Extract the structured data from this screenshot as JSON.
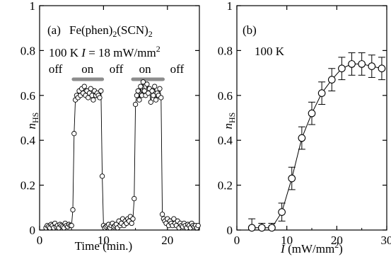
{
  "chart_data": [
    {
      "type": "scatter",
      "panel_label": "(a)",
      "xlabel": "Time (min.)",
      "ylabel": {
        "base": "n",
        "sub": "HS"
      },
      "xlim": [
        0,
        25
      ],
      "ylim": [
        0,
        1
      ],
      "xticks": [
        0,
        10,
        20
      ],
      "yticks": [
        0,
        0.2,
        0.4,
        0.6,
        0.8,
        1
      ],
      "ytick_labels": [
        "0",
        "0.2",
        "0.4",
        "0.6",
        "0.8",
        "1"
      ],
      "annotations": {
        "compound": {
          "pre": "Fe(phen)",
          "sub1": "2",
          "mid": "(SCN)",
          "sub2": "2"
        },
        "conditions": {
          "temp": "100 K",
          "ivar": "I",
          "ival": " = 18 mW/mm",
          "sup": "2"
        },
        "states": [
          {
            "label": "off",
            "x": 2.5
          },
          {
            "label": "on",
            "x": 7.5
          },
          {
            "label": "off",
            "x": 12.0
          },
          {
            "label": "on",
            "x": 16.5
          },
          {
            "label": "off",
            "x": 21.5
          }
        ],
        "light_bars": [
          {
            "x0": 5.3,
            "x1": 9.8
          },
          {
            "x0": 14.6,
            "x1": 19.3
          }
        ]
      },
      "series": [
        {
          "connect": true,
          "x": [
            1.0,
            1.2,
            1.4,
            1.6,
            1.8,
            2.0,
            2.2,
            2.4,
            2.6,
            2.8,
            3.0,
            3.2,
            3.4,
            3.6,
            3.8,
            4.0,
            4.2,
            4.4,
            4.6,
            4.8,
            5.0,
            5.2,
            5.4,
            5.6,
            5.8,
            6.0,
            6.2,
            6.4,
            6.6,
            6.8,
            7.0,
            7.2,
            7.4,
            7.6,
            7.8,
            8.0,
            8.2,
            8.4,
            8.6,
            8.8,
            9.0,
            9.2,
            9.4,
            9.6,
            9.8,
            10.0,
            10.2,
            10.4,
            10.6,
            10.8,
            11.0,
            11.2,
            11.4,
            11.6,
            11.8,
            12.0,
            12.2,
            12.4,
            12.6,
            12.8,
            13.0,
            13.2,
            13.4,
            13.6,
            13.8,
            14.0,
            14.2,
            14.4,
            14.6,
            14.8,
            15.0,
            15.2,
            15.4,
            15.6,
            15.8,
            16.0,
            16.2,
            16.4,
            16.6,
            16.8,
            17.0,
            17.2,
            17.4,
            17.6,
            17.8,
            18.0,
            18.2,
            18.4,
            18.6,
            18.8,
            19.0,
            19.2,
            19.4,
            19.6,
            19.8,
            20.0,
            20.2,
            20.4,
            20.6,
            20.8,
            21.0,
            21.2,
            21.4,
            21.6,
            21.8,
            22.0,
            22.2,
            22.4,
            22.6,
            22.8,
            23.0,
            23.2,
            23.4,
            23.6,
            23.8,
            24.0,
            24.2,
            24.4,
            24.6,
            24.8
          ],
          "y": [
            0.01,
            0.02,
            0.015,
            0.01,
            0.025,
            0.02,
            0.01,
            0.03,
            0.015,
            0.02,
            0.01,
            0.025,
            0.02,
            0.015,
            0.01,
            0.03,
            0.02,
            0.015,
            0.025,
            0.02,
            0.02,
            0.09,
            0.43,
            0.58,
            0.6,
            0.59,
            0.62,
            0.6,
            0.63,
            0.61,
            0.64,
            0.6,
            0.62,
            0.59,
            0.61,
            0.63,
            0.6,
            0.58,
            0.62,
            0.6,
            0.61,
            0.6,
            0.59,
            0.62,
            0.24,
            0.02,
            0.01,
            0.015,
            0.02,
            0.025,
            0.01,
            0.02,
            0.03,
            0.015,
            0.02,
            0.025,
            0.01,
            0.04,
            0.02,
            0.03,
            0.05,
            0.02,
            0.04,
            0.03,
            0.05,
            0.04,
            0.06,
            0.03,
            0.05,
            0.14,
            0.56,
            0.6,
            0.62,
            0.58,
            0.64,
            0.6,
            0.66,
            0.62,
            0.6,
            0.65,
            0.61,
            0.63,
            0.57,
            0.62,
            0.6,
            0.64,
            0.58,
            0.61,
            0.6,
            0.63,
            0.59,
            0.07,
            0.05,
            0.04,
            0.03,
            0.05,
            0.02,
            0.04,
            0.03,
            0.02,
            0.05,
            0.03,
            0.02,
            0.04,
            0.01,
            0.03,
            0.02,
            0.015,
            0.03,
            0.02,
            0.01,
            0.025,
            0.02,
            0.01,
            0.03,
            0.02,
            0.015,
            0.02,
            0.01,
            0.02
          ]
        }
      ]
    },
    {
      "type": "line",
      "panel_label": "(b)",
      "xlabel": {
        "var": "I",
        "unit": " (mW/mm",
        "sup": "2",
        "close": ")"
      },
      "ylabel": {
        "base": "n",
        "sub": "HS"
      },
      "xlim": [
        0,
        30
      ],
      "ylim": [
        0,
        1
      ],
      "xticks": [
        0,
        10,
        20,
        30
      ],
      "yticks": [
        0,
        0.2,
        0.4,
        0.6,
        0.8,
        1
      ],
      "ytick_labels": [
        "0",
        "0.2",
        "0.4",
        "0.6",
        "0.8",
        "1"
      ],
      "annotations": {
        "temp": "100 K"
      },
      "series": [
        {
          "x": [
            3,
            5,
            7,
            9,
            11,
            13,
            15,
            17,
            19,
            21,
            23,
            25,
            27,
            29
          ],
          "y": [
            0.01,
            0.01,
            0.01,
            0.08,
            0.23,
            0.41,
            0.52,
            0.61,
            0.67,
            0.72,
            0.74,
            0.74,
            0.73,
            0.72
          ],
          "err": [
            0.04,
            0.02,
            0.02,
            0.04,
            0.05,
            0.05,
            0.05,
            0.05,
            0.05,
            0.05,
            0.05,
            0.05,
            0.05,
            0.05
          ]
        }
      ]
    }
  ]
}
